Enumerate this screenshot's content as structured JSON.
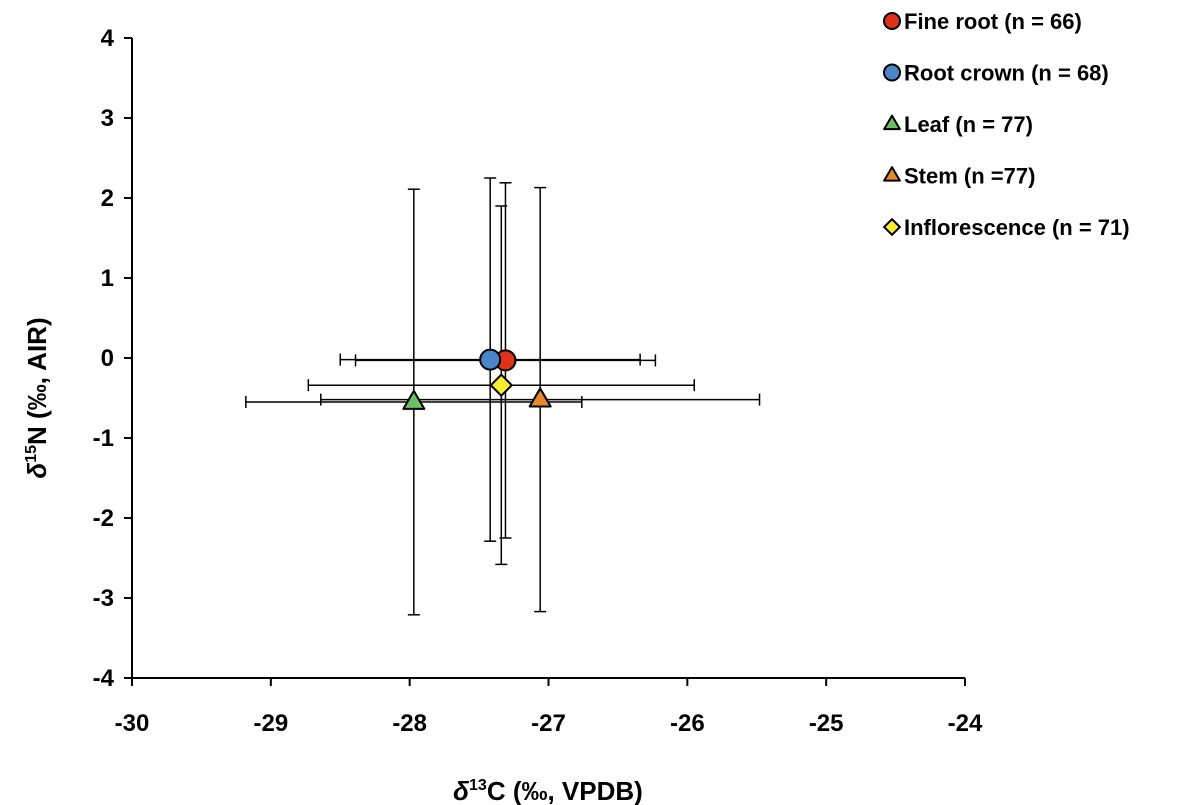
{
  "chart_data": {
    "type": "scatter",
    "title": "",
    "xlabel": {
      "prefix": "δ",
      "sup": "13",
      "suffix": "C (‰, VPDB)"
    },
    "ylabel": {
      "prefix": "δ",
      "sup": "15",
      "suffix": "N (‰, AIR)"
    },
    "xlim": [
      -30,
      -24
    ],
    "ylim": [
      -4,
      4
    ],
    "xticks": [
      -30,
      -29,
      -28,
      -27,
      -26,
      -25,
      -24
    ],
    "yticks": [
      -4,
      -3,
      -2,
      -1,
      0,
      1,
      2,
      3,
      4
    ],
    "grid": false,
    "legend_position": "top-right",
    "series": [
      {
        "name": "Fine root (n = 66)",
        "marker": "circle",
        "color": "#e0311a",
        "x": -27.31,
        "y": -0.03,
        "xerr": 1.08,
        "yerr": 2.22
      },
      {
        "name": "Root crown (n = 68)",
        "marker": "circle",
        "color": "#4a86c8",
        "x": -27.42,
        "y": -0.02,
        "xerr": 1.08,
        "yerr": 2.27
      },
      {
        "name": "Leaf (n = 77)",
        "marker": "triangle",
        "color": "#6cbf62",
        "x": -27.97,
        "y": -0.55,
        "xerr": 1.21,
        "yerr": 2.66
      },
      {
        "name": "Stem (n =77)",
        "marker": "triangle",
        "color": "#e38a2b",
        "x": -27.06,
        "y": -0.52,
        "xerr": 1.58,
        "yerr": 2.65
      },
      {
        "name": "Inflorescence (n = 71)",
        "marker": "diamond",
        "color": "#f6ec31",
        "x": -27.34,
        "y": -0.34,
        "xerr": 1.39,
        "yerr": 2.24
      }
    ]
  }
}
